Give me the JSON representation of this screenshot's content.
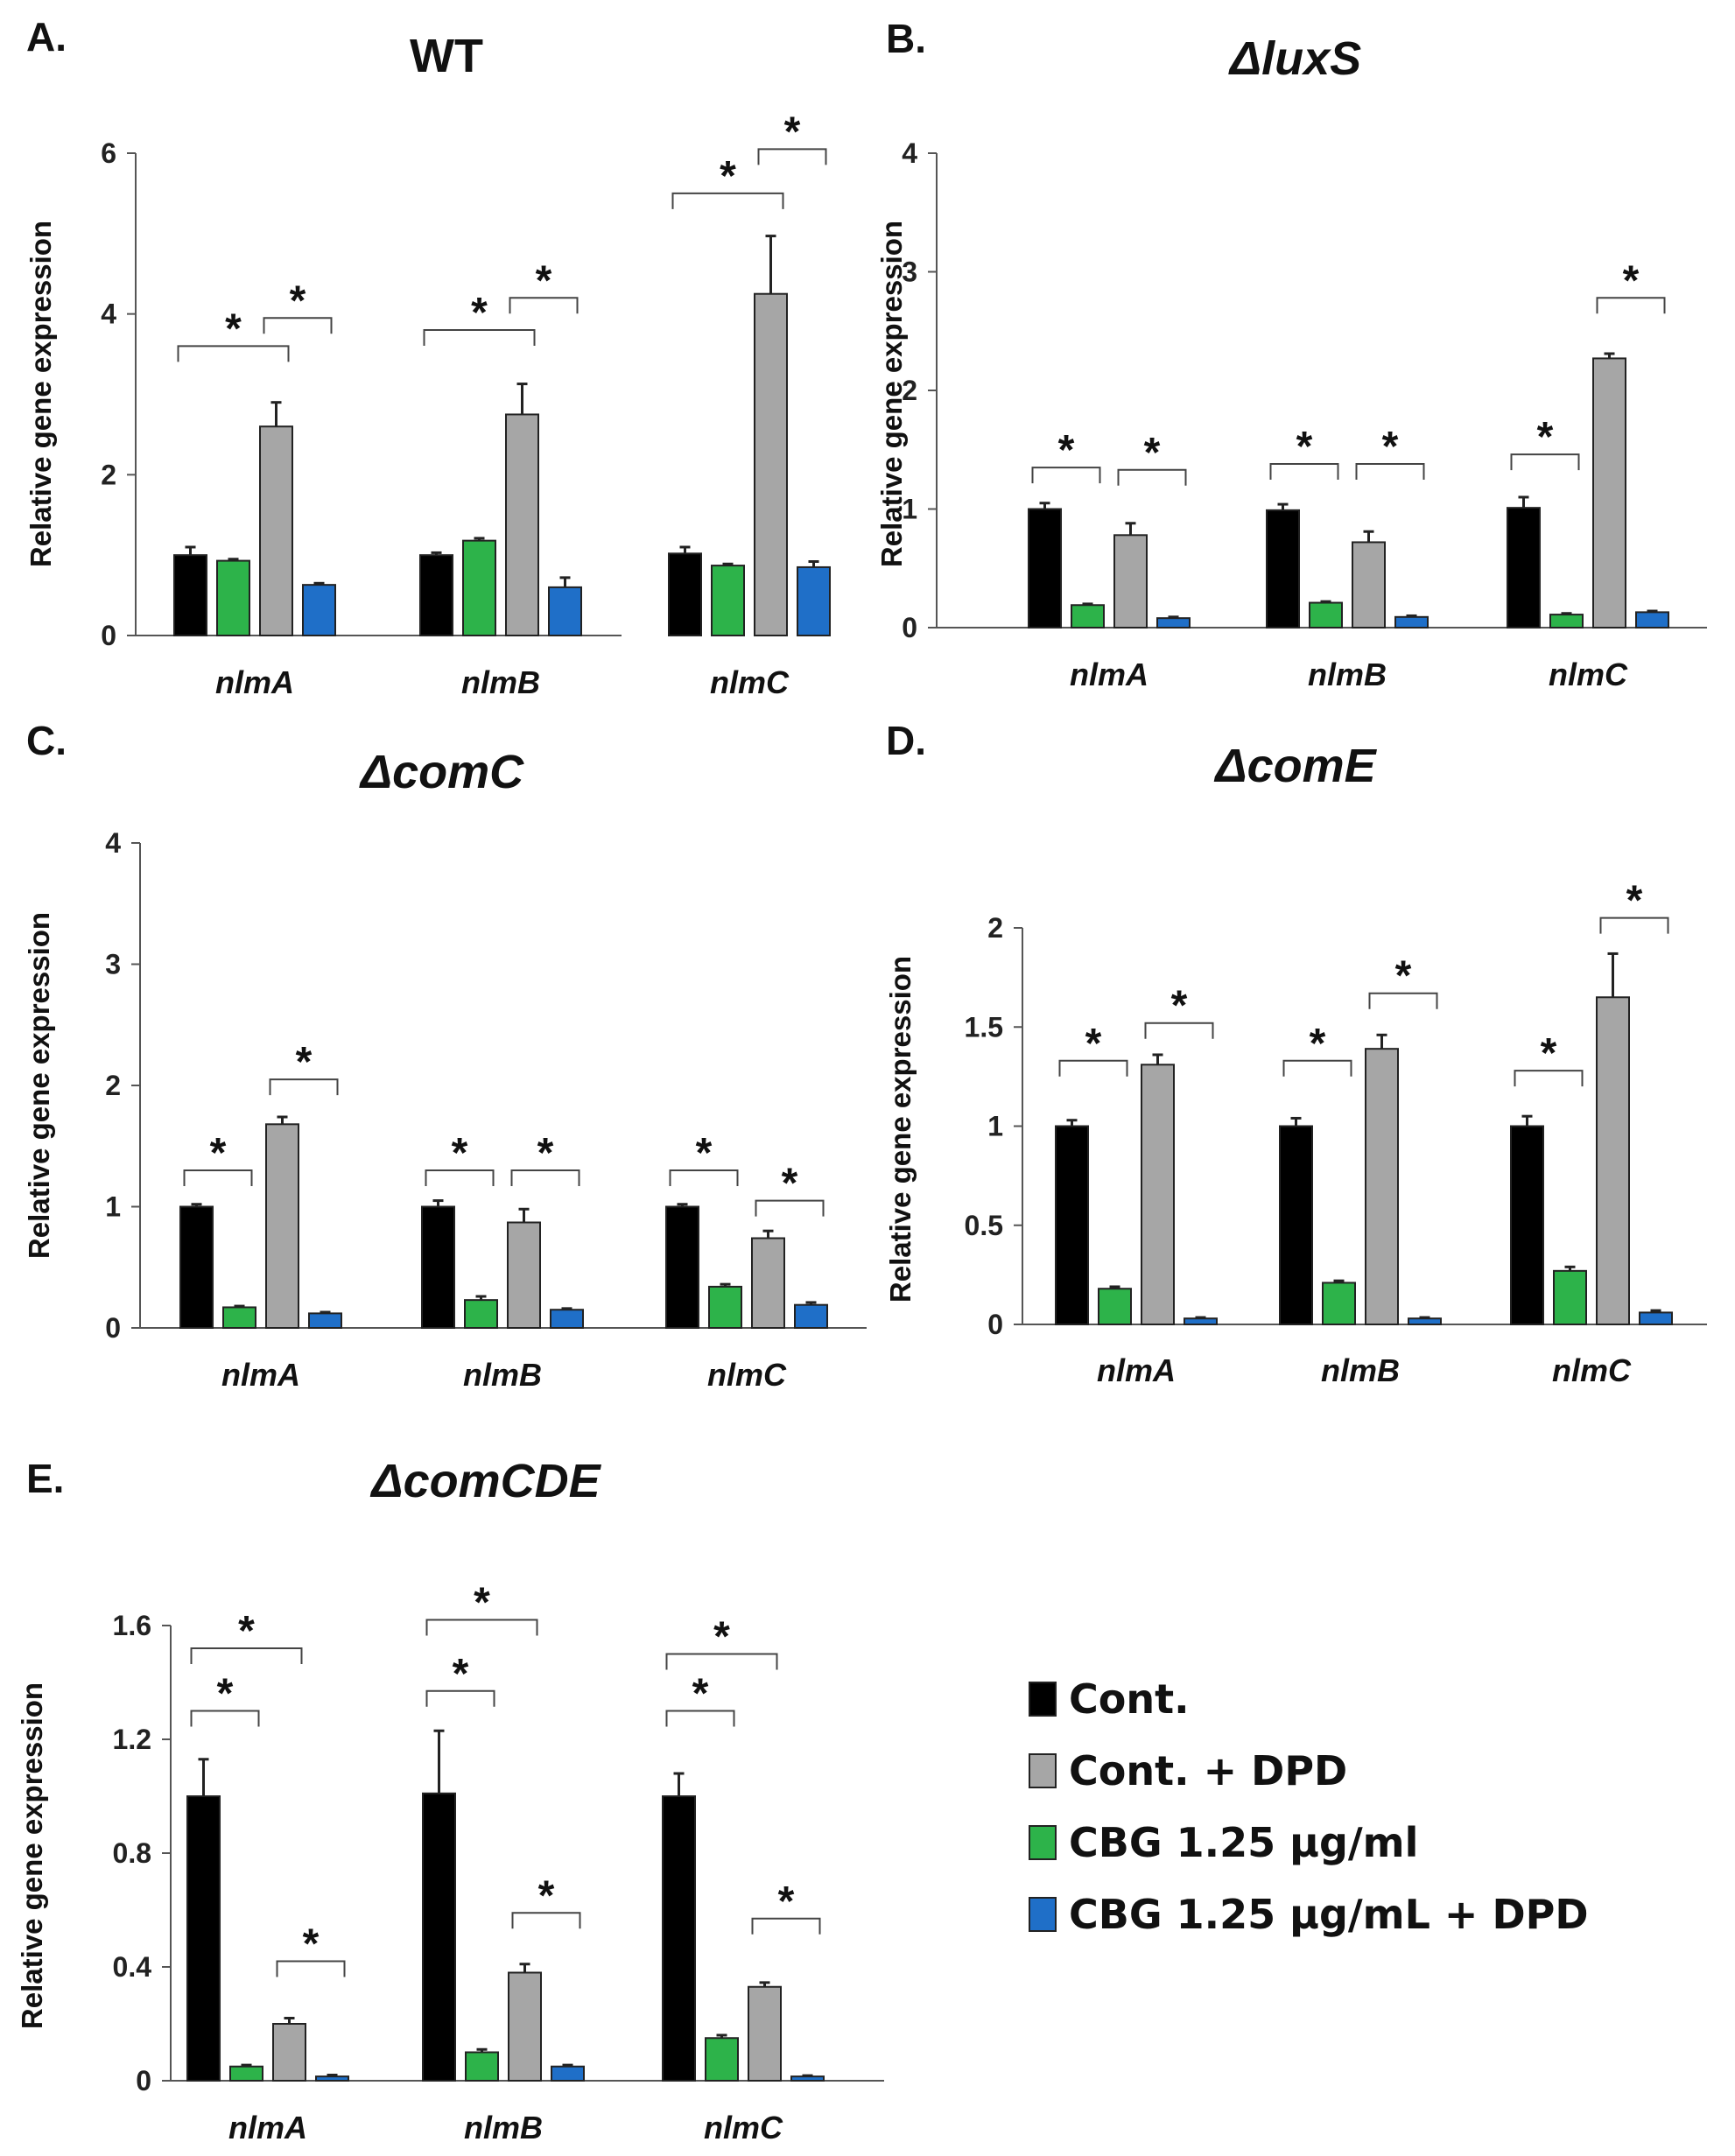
{
  "figure": {
    "ylabel": "Relative gene expression",
    "legend": [
      {
        "label": "Cont.",
        "color": "#000000"
      },
      {
        "label": "Cont. + DPD",
        "color": "#a6a6a6"
      },
      {
        "label": "CBG 1.25 μg/ml",
        "color": "#2db34a"
      },
      {
        "label": "CBG 1.25 μg/mL + DPD",
        "color": "#1f6fc8"
      }
    ]
  },
  "chart_data": [
    {
      "panel": "A.",
      "title": "WT",
      "type": "bar",
      "categories": [
        "nlmA",
        "nlmB",
        "nlmC"
      ],
      "ylim": [
        0,
        6
      ],
      "yticks": [
        "0",
        "2",
        "4",
        "6"
      ],
      "ytick_values": [
        0,
        2,
        4,
        6
      ],
      "series": [
        {
          "name": "Cont.",
          "color": "#000000",
          "values": [
            1.0,
            1.0,
            1.02
          ],
          "errors": [
            0.1,
            0.03,
            0.08
          ]
        },
        {
          "name": "CBG 1.25 μg/ml",
          "color": "#2db34a",
          "values": [
            0.93,
            1.18,
            0.87
          ],
          "errors": [
            0.02,
            0.03,
            0.02
          ]
        },
        {
          "name": "Cont. + DPD",
          "color": "#a6a6a6",
          "values": [
            2.6,
            2.75,
            4.25
          ],
          "errors": [
            0.3,
            0.38,
            0.72
          ]
        },
        {
          "name": "CBG 1.25 μg/mL + DPD",
          "color": "#1f6fc8",
          "values": [
            0.63,
            0.6,
            0.85
          ],
          "errors": [
            0.02,
            0.12,
            0.07
          ]
        }
      ],
      "brackets": [
        {
          "category": 0,
          "from": 0,
          "to": 2,
          "level": 3.6,
          "label": "*"
        },
        {
          "category": 0,
          "from": 2,
          "to": 3,
          "level": 3.95,
          "label": "*"
        },
        {
          "category": 1,
          "from": 0,
          "to": 2,
          "level": 3.8,
          "label": "*"
        },
        {
          "category": 1,
          "from": 2,
          "to": 3,
          "level": 4.2,
          "label": "*"
        },
        {
          "category": 2,
          "from": 0,
          "to": 2,
          "level": 5.5,
          "label": "*"
        },
        {
          "category": 2,
          "from": 2,
          "to": 3,
          "level": 6.05,
          "label": "*"
        }
      ]
    },
    {
      "panel": "B.",
      "title": "ΔluxS",
      "type": "bar",
      "categories": [
        "nlmA",
        "nlmB",
        "nlmC"
      ],
      "ylim": [
        0,
        4
      ],
      "yticks": [
        "0",
        "1",
        "2",
        "3",
        "4"
      ],
      "ytick_values": [
        0,
        1,
        2,
        3,
        4
      ],
      "series": [
        {
          "name": "Cont.",
          "color": "#000000",
          "values": [
            1.0,
            0.99,
            1.01
          ],
          "errors": [
            0.05,
            0.05,
            0.09
          ]
        },
        {
          "name": "CBG 1.25 μg/ml",
          "color": "#2db34a",
          "values": [
            0.19,
            0.21,
            0.11
          ],
          "errors": [
            0.01,
            0.01,
            0.01
          ]
        },
        {
          "name": "Cont. + DPD",
          "color": "#a6a6a6",
          "values": [
            0.78,
            0.72,
            2.27
          ],
          "errors": [
            0.1,
            0.09,
            0.04
          ]
        },
        {
          "name": "CBG 1.25 μg/mL + DPD",
          "color": "#1f6fc8",
          "values": [
            0.08,
            0.09,
            0.13
          ],
          "errors": [
            0.01,
            0.01,
            0.01
          ]
        }
      ],
      "brackets": [
        {
          "category": 0,
          "from": 0,
          "to": 1,
          "level": 1.35,
          "label": "*"
        },
        {
          "category": 0,
          "from": 2,
          "to": 3,
          "level": 1.33,
          "label": "*"
        },
        {
          "category": 1,
          "from": 0,
          "to": 1,
          "level": 1.38,
          "label": "*"
        },
        {
          "category": 1,
          "from": 2,
          "to": 3,
          "level": 1.38,
          "label": "*"
        },
        {
          "category": 2,
          "from": 0,
          "to": 1,
          "level": 1.46,
          "label": "*"
        },
        {
          "category": 2,
          "from": 2,
          "to": 3,
          "level": 2.78,
          "label": "*"
        }
      ]
    },
    {
      "panel": "C.",
      "title": "ΔcomC",
      "type": "bar",
      "categories": [
        "nlmA",
        "nlmB",
        "nlmC"
      ],
      "ylim": [
        0,
        4
      ],
      "yticks": [
        "0",
        "1",
        "2",
        "3",
        "4"
      ],
      "ytick_values": [
        0,
        1,
        2,
        3,
        4
      ],
      "series": [
        {
          "name": "Cont.",
          "color": "#000000",
          "values": [
            1.0,
            1.0,
            1.0
          ],
          "errors": [
            0.02,
            0.05,
            0.02
          ]
        },
        {
          "name": "CBG 1.25 μg/ml",
          "color": "#2db34a",
          "values": [
            0.17,
            0.23,
            0.34
          ],
          "errors": [
            0.01,
            0.03,
            0.02
          ]
        },
        {
          "name": "Cont. + DPD",
          "color": "#a6a6a6",
          "values": [
            1.68,
            0.87,
            0.74
          ],
          "errors": [
            0.06,
            0.11,
            0.06
          ]
        },
        {
          "name": "CBG 1.25 μg/mL + DPD",
          "color": "#1f6fc8",
          "values": [
            0.12,
            0.15,
            0.19
          ],
          "errors": [
            0.01,
            0.01,
            0.02
          ]
        }
      ],
      "brackets": [
        {
          "category": 0,
          "from": 0,
          "to": 1,
          "level": 1.3,
          "label": "*"
        },
        {
          "category": 0,
          "from": 2,
          "to": 3,
          "level": 2.05,
          "label": "*"
        },
        {
          "category": 1,
          "from": 0,
          "to": 1,
          "level": 1.3,
          "label": "*"
        },
        {
          "category": 1,
          "from": 2,
          "to": 3,
          "level": 1.3,
          "label": "*"
        },
        {
          "category": 2,
          "from": 0,
          "to": 1,
          "level": 1.3,
          "label": "*"
        },
        {
          "category": 2,
          "from": 2,
          "to": 3,
          "level": 1.05,
          "label": "*"
        }
      ]
    },
    {
      "panel": "D.",
      "title": "ΔcomE",
      "type": "bar",
      "categories": [
        "nlmA",
        "nlmB",
        "nlmC"
      ],
      "ylim": [
        0,
        2
      ],
      "yticks": [
        "0",
        "0.5",
        "1",
        "1.5",
        "2"
      ],
      "ytick_values": [
        0,
        0.5,
        1,
        1.5,
        2
      ],
      "series": [
        {
          "name": "Cont.",
          "color": "#000000",
          "values": [
            1.0,
            1.0,
            1.0
          ],
          "errors": [
            0.03,
            0.04,
            0.05
          ]
        },
        {
          "name": "CBG 1.25 μg/ml",
          "color": "#2db34a",
          "values": [
            0.18,
            0.21,
            0.27
          ],
          "errors": [
            0.01,
            0.01,
            0.02
          ]
        },
        {
          "name": "Cont. + DPD",
          "color": "#a6a6a6",
          "values": [
            1.31,
            1.39,
            1.65
          ],
          "errors": [
            0.05,
            0.07,
            0.22
          ]
        },
        {
          "name": "CBG 1.25 μg/mL + DPD",
          "color": "#1f6fc8",
          "values": [
            0.03,
            0.03,
            0.06
          ],
          "errors": [
            0.005,
            0.005,
            0.01
          ]
        }
      ],
      "brackets": [
        {
          "category": 0,
          "from": 0,
          "to": 1,
          "level": 1.33,
          "label": "*"
        },
        {
          "category": 0,
          "from": 2,
          "to": 3,
          "level": 1.52,
          "label": "*"
        },
        {
          "category": 1,
          "from": 0,
          "to": 1,
          "level": 1.33,
          "label": "*"
        },
        {
          "category": 1,
          "from": 2,
          "to": 3,
          "level": 1.67,
          "label": "*"
        },
        {
          "category": 2,
          "from": 0,
          "to": 1,
          "level": 1.28,
          "label": "*"
        },
        {
          "category": 2,
          "from": 2,
          "to": 3,
          "level": 2.05,
          "label": "*"
        }
      ]
    },
    {
      "panel": "E.",
      "title": "ΔcomCDE",
      "type": "bar",
      "categories": [
        "nlmA",
        "nlmB",
        "nlmC"
      ],
      "ylim": [
        0,
        1.6
      ],
      "yticks": [
        "0",
        "0.4",
        "0.8",
        "1.2",
        "1.6"
      ],
      "ytick_values": [
        0,
        0.4,
        0.8,
        1.2,
        1.6
      ],
      "series": [
        {
          "name": "Cont.",
          "color": "#000000",
          "values": [
            1.0,
            1.01,
            1.0
          ],
          "errors": [
            0.13,
            0.22,
            0.08
          ]
        },
        {
          "name": "CBG 1.25 μg/ml",
          "color": "#2db34a",
          "values": [
            0.05,
            0.1,
            0.15
          ],
          "errors": [
            0.005,
            0.01,
            0.01
          ]
        },
        {
          "name": "Cont. + DPD",
          "color": "#a6a6a6",
          "values": [
            0.2,
            0.38,
            0.33
          ],
          "errors": [
            0.02,
            0.03,
            0.015
          ]
        },
        {
          "name": "CBG 1.25 μg/mL + DPD",
          "color": "#1f6fc8",
          "values": [
            0.015,
            0.05,
            0.015
          ],
          "errors": [
            0.005,
            0.005,
            0.003
          ]
        }
      ],
      "brackets": [
        {
          "category": 0,
          "from": 0,
          "to": 1,
          "level": 1.3,
          "label": "*"
        },
        {
          "category": 0,
          "from": 0,
          "to": 2,
          "level": 1.52,
          "label": "*"
        },
        {
          "category": 0,
          "from": 2,
          "to": 3,
          "level": 0.42,
          "label": "*"
        },
        {
          "category": 1,
          "from": 0,
          "to": 1,
          "level": 1.37,
          "label": "*"
        },
        {
          "category": 1,
          "from": 0,
          "to": 2,
          "level": 1.62,
          "label": "*"
        },
        {
          "category": 1,
          "from": 2,
          "to": 3,
          "level": 0.59,
          "label": "*"
        },
        {
          "category": 2,
          "from": 0,
          "to": 1,
          "level": 1.3,
          "label": "*"
        },
        {
          "category": 2,
          "from": 0,
          "to": 2,
          "level": 1.5,
          "label": "*"
        },
        {
          "category": 2,
          "from": 2,
          "to": 3,
          "level": 0.57,
          "label": "*"
        }
      ]
    }
  ]
}
